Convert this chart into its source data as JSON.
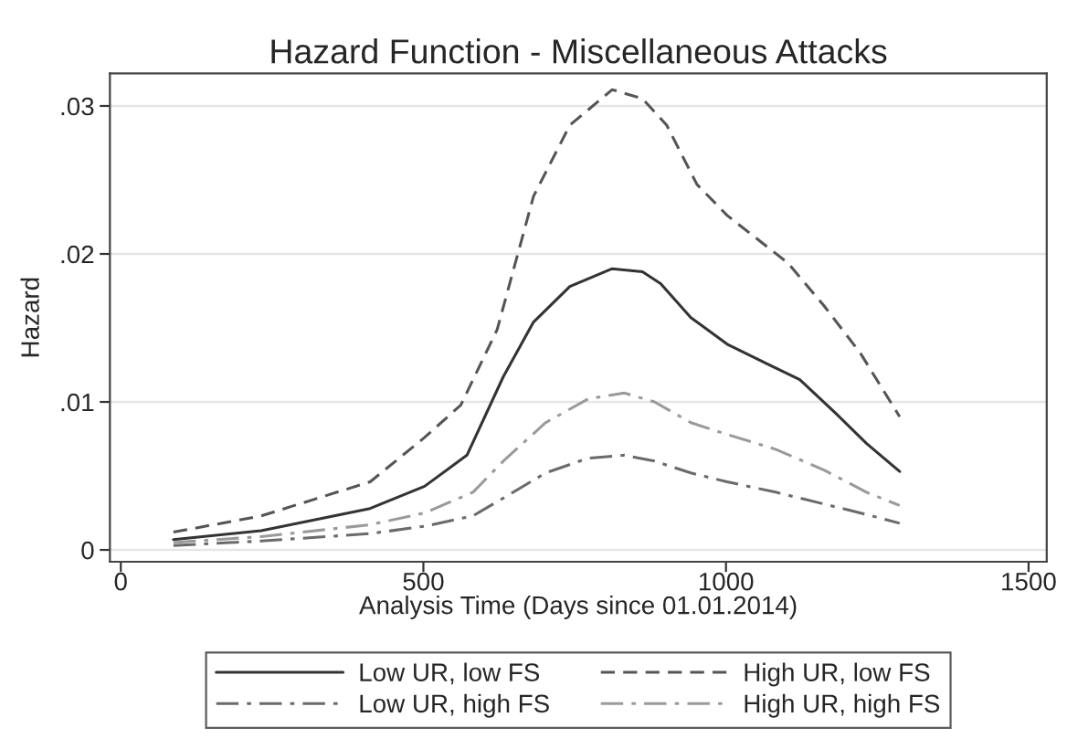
{
  "chart_data": {
    "type": "line",
    "title": "Hazard Function - Miscellaneous Attacks",
    "xlabel": "Analysis Time (Days since 01.01.2014)",
    "ylabel": "Hazard",
    "xlim": [
      -18,
      1530
    ],
    "ylim": [
      -0.0008,
      0.0322
    ],
    "xticks": [
      0,
      500,
      1000,
      1500
    ],
    "yticks": [
      0,
      {
        "value": 0.01,
        "label": ".01"
      },
      {
        "value": 0.02,
        "label": ".02"
      },
      {
        "value": 0.03,
        "label": ".03"
      }
    ],
    "grid": "y",
    "legend": "bottom",
    "marker": "none",
    "series": [
      {
        "name": "Low UR, low FS",
        "color": "#333333",
        "line_style": "solid",
        "x": [
          87,
          232,
          412,
          502,
          572,
          632,
          682,
          742,
          812,
          862,
          892,
          942,
          1002,
          1072,
          1122,
          1182,
          1232,
          1287
        ],
        "values": [
          0.0007,
          0.0013,
          0.0028,
          0.0043,
          0.0064,
          0.0117,
          0.0154,
          0.0178,
          0.019,
          0.0188,
          0.018,
          0.0157,
          0.0139,
          0.0125,
          0.0115,
          0.0092,
          0.0072,
          0.0053
        ]
      },
      {
        "name": "High UR, low FS",
        "color": "#555555",
        "line_style": "dashed",
        "x": [
          87,
          232,
          412,
          502,
          562,
          622,
          682,
          742,
          812,
          862,
          902,
          952,
          1002,
          1052,
          1102,
          1162,
          1222,
          1287
        ],
        "values": [
          0.0012,
          0.0023,
          0.0046,
          0.0076,
          0.0098,
          0.0149,
          0.0239,
          0.0287,
          0.0311,
          0.0305,
          0.0287,
          0.0247,
          0.0226,
          0.021,
          0.0194,
          0.0165,
          0.0133,
          0.009
        ]
      },
      {
        "name": "Low UR, high FS",
        "color": "#6a6a6a",
        "line_style": "dashdot",
        "x": [
          87,
          232,
          412,
          502,
          582,
          632,
          702,
          772,
          832,
          882,
          942,
          1002,
          1082,
          1162,
          1232,
          1287
        ],
        "values": [
          0.0003,
          0.0006,
          0.0011,
          0.0016,
          0.0023,
          0.0035,
          0.0052,
          0.0062,
          0.0064,
          0.006,
          0.0052,
          0.0046,
          0.0039,
          0.0031,
          0.0024,
          0.0018
        ]
      },
      {
        "name": "High UR, high FS",
        "color": "#9a9a9a",
        "line_style": "dashdot",
        "x": [
          87,
          232,
          412,
          502,
          582,
          632,
          702,
          772,
          832,
          882,
          942,
          1002,
          1082,
          1162,
          1232,
          1287
        ],
        "values": [
          0.0005,
          0.0009,
          0.0017,
          0.0025,
          0.0039,
          0.006,
          0.0086,
          0.0102,
          0.0106,
          0.01,
          0.0086,
          0.0078,
          0.0068,
          0.0054,
          0.0039,
          0.003
        ]
      }
    ]
  }
}
